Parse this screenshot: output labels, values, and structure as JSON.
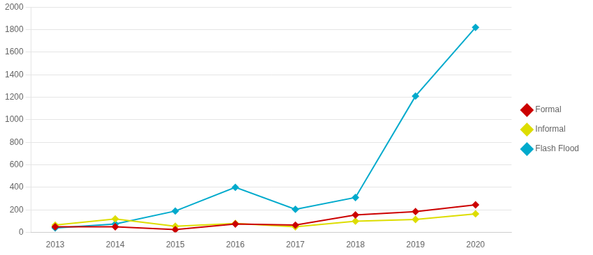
{
  "chart_data": {
    "type": "line",
    "x": [
      2013,
      2014,
      2015,
      2016,
      2017,
      2018,
      2019,
      2020
    ],
    "series": [
      {
        "name": "Formal",
        "color": "#CC0000",
        "values": [
          50,
          50,
          25,
          75,
          65,
          155,
          185,
          245
        ]
      },
      {
        "name": "Informal",
        "color": "#DDDD00",
        "values": [
          65,
          120,
          55,
          80,
          50,
          100,
          115,
          165
        ]
      },
      {
        "name": "Flash Flood",
        "color": "#00AACC",
        "values": [
          40,
          75,
          190,
          400,
          205,
          310,
          1210,
          1820
        ]
      }
    ],
    "xlim": [
      2012.6,
      2020.6
    ],
    "xticks": [
      2013,
      2014,
      2015,
      2016,
      2017,
      2018,
      2019,
      2020
    ],
    "ylim": [
      0,
      2000
    ],
    "yticks": [
      0,
      200,
      400,
      600,
      800,
      1000,
      1200,
      1400,
      1600,
      1800,
      2000
    ],
    "grid": "y",
    "legend": "right",
    "marker": "diamond"
  }
}
